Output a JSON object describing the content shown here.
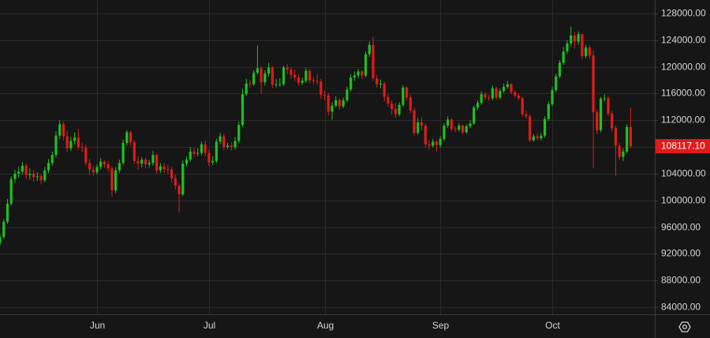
{
  "chart_data": {
    "type": "candlestick",
    "up_color": "#1fc01f",
    "down_color": "#e01b1b",
    "grid": true,
    "ylim": [
      84000,
      128000
    ],
    "yticks": [
      {
        "value": 84000,
        "label": "84000.00"
      },
      {
        "value": 88000,
        "label": "88000.00"
      },
      {
        "value": 92000,
        "label": "92000.00"
      },
      {
        "value": 96000,
        "label": "96000.00"
      },
      {
        "value": 100000,
        "label": "100000.00"
      },
      {
        "value": 104000,
        "label": "104000.00"
      },
      {
        "value": 108000,
        "label": "108000.00"
      },
      {
        "value": 112000,
        "label": "112000.00"
      },
      {
        "value": 116000,
        "label": "116000.00"
      },
      {
        "value": 120000,
        "label": "120000.00"
      },
      {
        "value": 124000,
        "label": "124000.00"
      },
      {
        "value": 128000,
        "label": "128000.00"
      }
    ],
    "last_price": {
      "value": 108117.1,
      "label": "108117.10"
    },
    "categories": [
      null,
      null,
      null,
      null,
      null,
      null,
      null,
      null,
      null,
      null,
      null,
      null,
      null,
      null,
      null,
      null,
      null,
      null,
      null,
      null,
      null,
      null,
      null,
      null,
      null,
      null,
      "Jun",
      null,
      null,
      null,
      null,
      null,
      null,
      null,
      null,
      null,
      null,
      null,
      null,
      null,
      null,
      null,
      null,
      null,
      null,
      null,
      null,
      null,
      null,
      null,
      null,
      null,
      null,
      null,
      null,
      null,
      "Jul",
      null,
      null,
      null,
      null,
      null,
      null,
      null,
      null,
      null,
      null,
      null,
      null,
      null,
      null,
      null,
      null,
      null,
      null,
      null,
      null,
      null,
      null,
      null,
      null,
      null,
      null,
      null,
      null,
      null,
      null,
      "Aug",
      null,
      null,
      null,
      null,
      null,
      null,
      null,
      null,
      null,
      null,
      null,
      null,
      null,
      null,
      null,
      null,
      null,
      null,
      null,
      null,
      null,
      null,
      null,
      null,
      null,
      null,
      null,
      null,
      null,
      null,
      "Sep",
      null,
      null,
      null,
      null,
      null,
      null,
      null,
      null,
      null,
      null,
      null,
      null,
      null,
      null,
      null,
      null,
      null,
      null,
      null,
      null,
      null,
      null,
      null,
      null,
      null,
      null,
      null,
      null,
      null,
      "Oct",
      null,
      null,
      null,
      null,
      null,
      null,
      null,
      null,
      null,
      null,
      null,
      null,
      null,
      null,
      null,
      null,
      null,
      null,
      null,
      null,
      null
    ],
    "ohlc": [
      [
        93600,
        95000,
        93200,
        94500
      ],
      [
        94500,
        97200,
        94200,
        96800
      ],
      [
        96800,
        100200,
        96500,
        99500
      ],
      [
        99500,
        103600,
        99200,
        103200
      ],
      [
        103200,
        104600,
        102600,
        104000
      ],
      [
        104000,
        105000,
        103400,
        104300
      ],
      [
        104300,
        105800,
        103900,
        105200
      ],
      [
        105200,
        105500,
        103200,
        103800
      ],
      [
        103800,
        104800,
        103100,
        104000
      ],
      [
        104000,
        104500,
        102800,
        103500
      ],
      [
        103500,
        104200,
        102900,
        103600
      ],
      [
        103600,
        104000,
        102400,
        103000
      ],
      [
        103000,
        105000,
        102700,
        104500
      ],
      [
        104500,
        106200,
        104100,
        105600
      ],
      [
        105600,
        107300,
        105200,
        106800
      ],
      [
        106800,
        110300,
        106400,
        109700
      ],
      [
        109700,
        112000,
        109200,
        111400
      ],
      [
        111400,
        111800,
        109000,
        109600
      ],
      [
        109600,
        110400,
        107200,
        107800
      ],
      [
        107800,
        109500,
        107400,
        108900
      ],
      [
        108900,
        110200,
        108400,
        109400
      ],
      [
        109400,
        110700,
        107600,
        108000
      ],
      [
        108000,
        108600,
        107200,
        107900
      ],
      [
        107900,
        108300,
        105100,
        105600
      ],
      [
        105600,
        106200,
        103800,
        104600
      ],
      [
        104600,
        105200,
        103700,
        104200
      ],
      [
        104200,
        105400,
        103900,
        105000
      ],
      [
        105000,
        106300,
        104600,
        105800
      ],
      [
        105800,
        106000,
        104900,
        105400
      ],
      [
        105400,
        105900,
        104300,
        104800
      ],
      [
        104800,
        105100,
        100600,
        101500
      ],
      [
        101500,
        105000,
        101100,
        104500
      ],
      [
        104500,
        106100,
        104100,
        105600
      ],
      [
        105600,
        109100,
        105300,
        108600
      ],
      [
        108600,
        110500,
        108200,
        110200
      ],
      [
        110200,
        110400,
        108200,
        108700
      ],
      [
        108700,
        109000,
        105500,
        105900
      ],
      [
        105900,
        106600,
        104600,
        105500
      ],
      [
        105500,
        106500,
        104900,
        106100
      ],
      [
        106100,
        106400,
        104800,
        105400
      ],
      [
        105400,
        106100,
        104900,
        105600
      ],
      [
        105600,
        107400,
        105200,
        106800
      ],
      [
        106800,
        107000,
        104000,
        104500
      ],
      [
        104500,
        105600,
        104100,
        105100
      ],
      [
        105100,
        105600,
        104100,
        104700
      ],
      [
        104700,
        105300,
        103900,
        104600
      ],
      [
        104600,
        105000,
        102700,
        103300
      ],
      [
        103300,
        103900,
        101600,
        102200
      ],
      [
        102200,
        102500,
        98200,
        100900
      ],
      [
        100900,
        106000,
        100600,
        105500
      ],
      [
        105500,
        106600,
        105100,
        106100
      ],
      [
        106100,
        108000,
        105800,
        107300
      ],
      [
        107300,
        107900,
        106500,
        107000
      ],
      [
        107000,
        107800,
        106600,
        107100
      ],
      [
        107100,
        108800,
        106800,
        108400
      ],
      [
        108400,
        108900,
        106600,
        107100
      ],
      [
        107100,
        107600,
        105100,
        105700
      ],
      [
        105700,
        106600,
        105300,
        105900
      ],
      [
        105900,
        109200,
        105600,
        108800
      ],
      [
        108800,
        110100,
        108400,
        109600
      ],
      [
        109600,
        109900,
        107600,
        108000
      ],
      [
        108000,
        108600,
        107700,
        108200
      ],
      [
        108200,
        108700,
        107500,
        108000
      ],
      [
        108000,
        109500,
        107600,
        108900
      ],
      [
        108900,
        111800,
        108600,
        111300
      ],
      [
        111300,
        116700,
        111000,
        115900
      ],
      [
        115900,
        118200,
        115600,
        117500
      ],
      [
        117500,
        118000,
        116900,
        117400
      ],
      [
        117400,
        119500,
        117100,
        119100
      ],
      [
        119100,
        123200,
        118900,
        119800
      ],
      [
        119800,
        120000,
        116000,
        117700
      ],
      [
        117700,
        119500,
        117200,
        119000
      ],
      [
        119000,
        120600,
        118500,
        119900
      ],
      [
        119900,
        120100,
        116800,
        117300
      ],
      [
        117300,
        118200,
        116900,
        117400
      ],
      [
        117400,
        118300,
        117000,
        117400
      ],
      [
        117400,
        120200,
        117100,
        119900
      ],
      [
        119900,
        120400,
        118900,
        119600
      ],
      [
        119600,
        119900,
        118200,
        118800
      ],
      [
        118800,
        119600,
        117900,
        118400
      ],
      [
        118400,
        118900,
        117200,
        117600
      ],
      [
        117600,
        118400,
        117300,
        117900
      ],
      [
        117900,
        119800,
        117600,
        119400
      ],
      [
        119400,
        119700,
        117600,
        118000
      ],
      [
        118000,
        118500,
        117400,
        117900
      ],
      [
        117900,
        118900,
        117300,
        117800
      ],
      [
        117800,
        118200,
        115200,
        115800
      ],
      [
        115800,
        116400,
        115000,
        115700
      ],
      [
        115700,
        116100,
        112700,
        113300
      ],
      [
        113300,
        114700,
        112100,
        114200
      ],
      [
        114200,
        115600,
        113900,
        115000
      ],
      [
        115000,
        115300,
        113600,
        114100
      ],
      [
        114100,
        115400,
        113800,
        115000
      ],
      [
        115000,
        117000,
        114700,
        116600
      ],
      [
        116600,
        118900,
        116300,
        118400
      ],
      [
        118400,
        119300,
        117900,
        118700
      ],
      [
        118700,
        119700,
        118300,
        119300
      ],
      [
        119300,
        119500,
        118200,
        118700
      ],
      [
        118700,
        122300,
        118400,
        121900
      ],
      [
        121900,
        123800,
        121500,
        123300
      ],
      [
        123300,
        124500,
        117900,
        118300
      ],
      [
        118300,
        118800,
        116900,
        117400
      ],
      [
        117400,
        118100,
        116800,
        117500
      ],
      [
        117500,
        117800,
        114800,
        115500
      ],
      [
        115500,
        115900,
        114000,
        114500
      ],
      [
        114500,
        115000,
        112800,
        113700
      ],
      [
        113700,
        114600,
        112400,
        112900
      ],
      [
        112900,
        114700,
        112600,
        114300
      ],
      [
        114300,
        117300,
        114000,
        116900
      ],
      [
        116900,
        117100,
        114900,
        115400
      ],
      [
        115400,
        115800,
        113100,
        113500
      ],
      [
        113500,
        113900,
        109700,
        110100
      ],
      [
        110100,
        112300,
        109800,
        111700
      ],
      [
        111700,
        112400,
        110500,
        111200
      ],
      [
        111200,
        111500,
        107900,
        108400
      ],
      [
        108400,
        109000,
        107600,
        108200
      ],
      [
        108200,
        109200,
        107900,
        108800
      ],
      [
        108800,
        109000,
        107300,
        108300
      ],
      [
        108300,
        109600,
        107900,
        109200
      ],
      [
        109200,
        111600,
        108900,
        111200
      ],
      [
        111200,
        112600,
        110800,
        112100
      ],
      [
        112100,
        112300,
        110300,
        110700
      ],
      [
        110700,
        111100,
        110200,
        110600
      ],
      [
        110600,
        111600,
        110300,
        111200
      ],
      [
        111200,
        111400,
        109900,
        110200
      ],
      [
        110200,
        111400,
        110000,
        111100
      ],
      [
        111100,
        112000,
        110800,
        111500
      ],
      [
        111500,
        114200,
        111300,
        113900
      ],
      [
        113900,
        115000,
        113500,
        114600
      ],
      [
        114600,
        116300,
        114300,
        115900
      ],
      [
        115900,
        116200,
        115000,
        115400
      ],
      [
        115400,
        115800,
        114900,
        115300
      ],
      [
        115300,
        117200,
        115000,
        116800
      ],
      [
        116800,
        117000,
        115100,
        115400
      ],
      [
        115400,
        116800,
        115100,
        116400
      ],
      [
        116400,
        117500,
        116100,
        117000
      ],
      [
        117000,
        117900,
        116700,
        117400
      ],
      [
        117400,
        117600,
        115900,
        116200
      ],
      [
        116200,
        116500,
        115400,
        115700
      ],
      [
        115700,
        116000,
        115000,
        115300
      ],
      [
        115300,
        115500,
        112500,
        112900
      ],
      [
        112900,
        113400,
        112200,
        112600
      ],
      [
        112600,
        112900,
        108700,
        109000
      ],
      [
        109000,
        109900,
        108800,
        109600
      ],
      [
        109600,
        110000,
        109000,
        109300
      ],
      [
        109300,
        110100,
        109000,
        109700
      ],
      [
        109700,
        112600,
        109400,
        112200
      ],
      [
        112200,
        114800,
        111900,
        114400
      ],
      [
        114400,
        117000,
        114100,
        116500
      ],
      [
        116500,
        119000,
        116200,
        118600
      ],
      [
        118600,
        121000,
        118300,
        120600
      ],
      [
        120600,
        123000,
        120300,
        122300
      ],
      [
        122300,
        124000,
        121900,
        123500
      ],
      [
        123500,
        126000,
        123100,
        124700
      ],
      [
        124700,
        125200,
        122800,
        123800
      ],
      [
        123800,
        125300,
        123300,
        124900
      ],
      [
        124900,
        125000,
        121100,
        121600
      ],
      [
        121600,
        123300,
        121300,
        122900
      ],
      [
        122900,
        123200,
        121200,
        121700
      ],
      [
        121700,
        122500,
        104800,
        113200
      ],
      [
        113200,
        113600,
        109900,
        110500
      ],
      [
        110500,
        115500,
        110200,
        115200
      ],
      [
        115200,
        115900,
        114800,
        115300
      ],
      [
        115300,
        115600,
        112600,
        113000
      ],
      [
        113000,
        113400,
        110300,
        110800
      ],
      [
        110800,
        111200,
        103700,
        108200
      ],
      [
        108200,
        108600,
        106100,
        106500
      ],
      [
        106500,
        107800,
        105900,
        107300
      ],
      [
        107300,
        111400,
        107000,
        111000
      ],
      [
        111000,
        113900,
        107800,
        108117.1
      ]
    ]
  }
}
